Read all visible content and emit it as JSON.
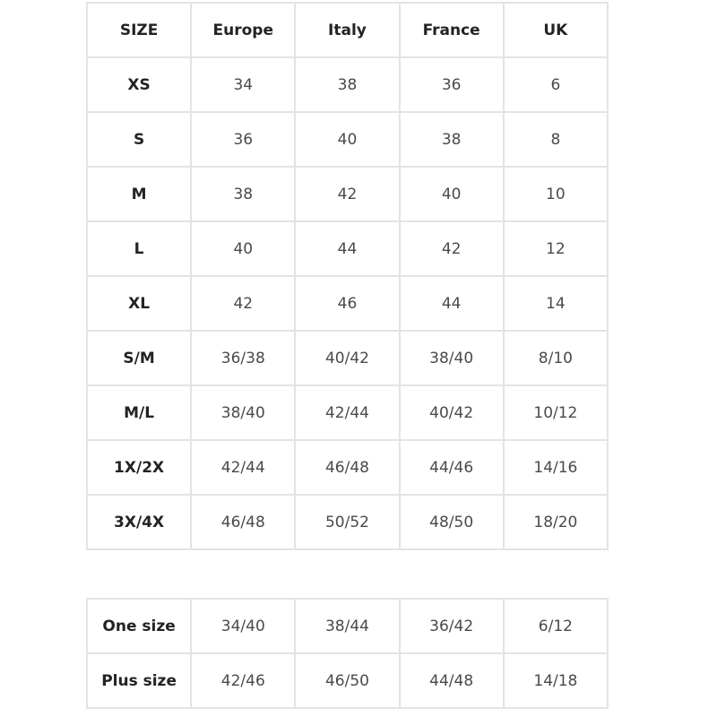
{
  "size_table": {
    "headers": [
      "SIZE",
      "Europe",
      "Italy",
      "France",
      "UK"
    ],
    "rows": [
      [
        "XS",
        "34",
        "38",
        "36",
        "6"
      ],
      [
        "S",
        "36",
        "40",
        "38",
        "8"
      ],
      [
        "M",
        "38",
        "42",
        "40",
        "10"
      ],
      [
        "L",
        "40",
        "44",
        "42",
        "12"
      ],
      [
        "XL",
        "42",
        "46",
        "44",
        "14"
      ],
      [
        "S/M",
        "36/38",
        "40/42",
        "38/40",
        "8/10"
      ],
      [
        "M/L",
        "38/40",
        "42/44",
        "40/42",
        "10/12"
      ],
      [
        "1X/2X",
        "42/44",
        "46/48",
        "44/46",
        "14/16"
      ],
      [
        "3X/4X",
        "46/48",
        "50/52",
        "48/50",
        "18/20"
      ]
    ]
  },
  "range_table": {
    "rows": [
      [
        "One size",
        "34/40",
        "38/44",
        "36/42",
        "6/12"
      ],
      [
        "Plus size",
        "42/46",
        "46/50",
        "44/48",
        "14/18"
      ]
    ]
  }
}
